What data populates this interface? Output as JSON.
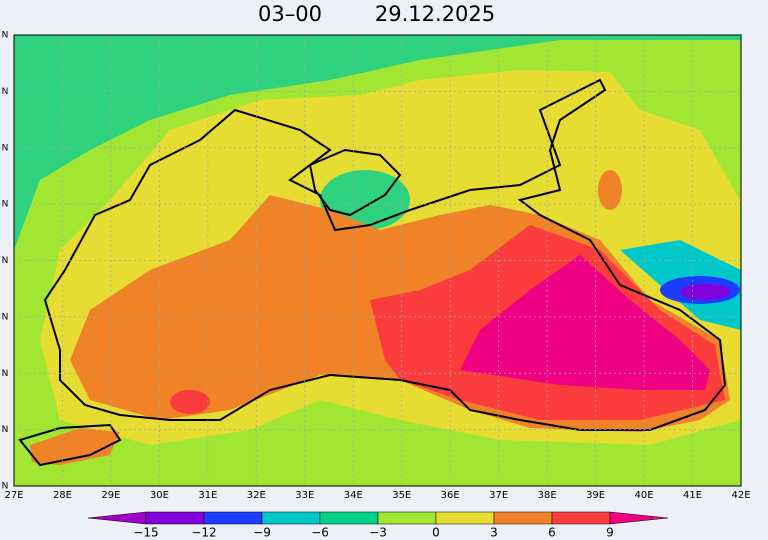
{
  "title": {
    "time": "03–00",
    "date": "29.12.2025"
  },
  "lon_labels": [
    "27E",
    "28E",
    "29E",
    "30E",
    "31E",
    "32E",
    "33E",
    "34E",
    "35E",
    "36E",
    "37E",
    "38E",
    "39E",
    "40E",
    "41E",
    "42E"
  ],
  "lat_labels": [
    "N",
    "N",
    "N",
    "N",
    "N",
    "N",
    "N",
    "N",
    "N"
  ],
  "colorbar": {
    "labels": [
      "−15",
      "−12",
      "−9",
      "−6",
      "−3",
      "0",
      "3",
      "6",
      "9"
    ],
    "colors": [
      "#a000c8",
      "#8200dc",
      "#1e3cff",
      "#00c8c8",
      "#00d28c",
      "#a0e632",
      "#e6dc32",
      "#f08228",
      "#fa3c3c",
      "#f00082"
    ]
  }
}
